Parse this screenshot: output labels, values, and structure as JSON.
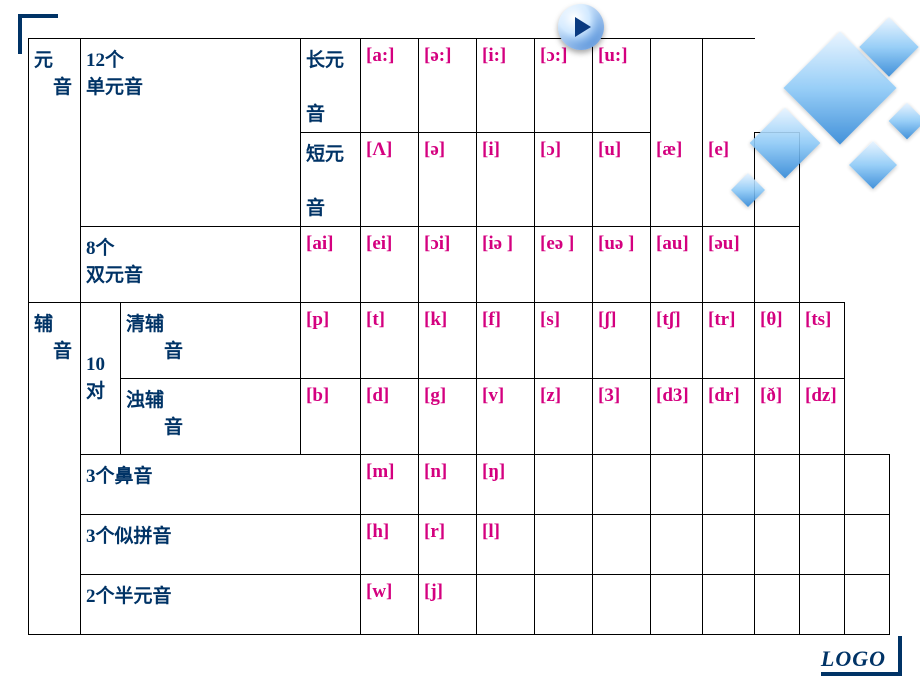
{
  "logo": "LOGO",
  "headers": {
    "vowel": "元\n　音",
    "mono12": "12个\n单元音",
    "long": "长元\n　　音",
    "short": "短元\n　　音",
    "diph8": "8个\n双元音",
    "consonant": "辅\n　音",
    "pairs10": "10\n对",
    "voiceless": "清辅\n　　音",
    "voiced": "浊辅\n　　音",
    "nasal3": "3个鼻音",
    "pinyin3": "3个似拼音",
    "semi2": "2个半元音"
  },
  "long": [
    "[a:]",
    "[ə:]",
    "[i:]",
    "[ɔ:]",
    "[u:]"
  ],
  "short": [
    "[Λ]",
    "[ə]",
    "[i]",
    "[ɔ]",
    "[u]",
    "[æ]",
    "[e]"
  ],
  "diph": [
    "[ai]",
    "[ei]",
    "[ɔi]",
    "[iə ]",
    "[eə ]",
    "[uə ]",
    "[au]",
    "[əu]"
  ],
  "vless": [
    "[p]",
    "[t]",
    "[k]",
    "[f]",
    "[s]",
    "[ʃ]",
    "[tʃ]",
    "[tr]",
    "[θ]",
    "[ts]"
  ],
  "voiced": [
    "[b]",
    "[d]",
    "[g]",
    "[v]",
    "[z]",
    "[3]",
    "[d3]",
    "[dr]",
    "[ð]",
    "[dz]"
  ],
  "nasal": [
    "[m]",
    "[n]",
    "[ŋ]"
  ],
  "pinyin": [
    "[h]",
    "[r]",
    "[l]"
  ],
  "semi": [
    "[w]",
    "[j]"
  ]
}
